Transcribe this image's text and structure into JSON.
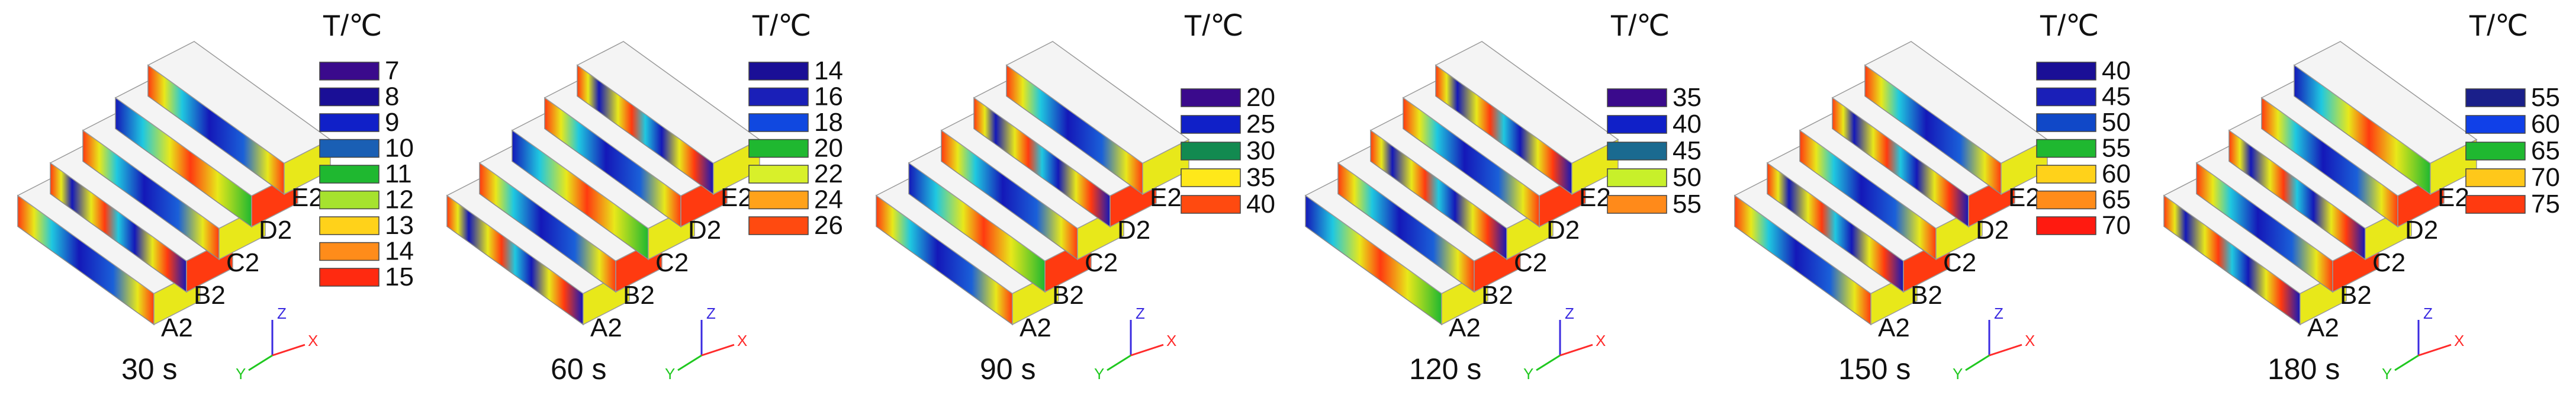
{
  "panels": [
    {
      "time": "30 s",
      "legend_title": "T/℃",
      "legend": [
        {
          "label": "7",
          "color": "#3a0a8c"
        },
        {
          "label": "8",
          "color": "#1a0f96"
        },
        {
          "label": "9",
          "color": "#1020c8"
        },
        {
          "label": "10",
          "color": "#1a5fb4"
        },
        {
          "label": "11",
          "color": "#1fb830"
        },
        {
          "label": "12",
          "color": "#a6e22e"
        },
        {
          "label": "13",
          "color": "#ffd21a"
        },
        {
          "label": "14",
          "color": "#ff8c1a"
        },
        {
          "label": "15",
          "color": "#ff2a10"
        }
      ]
    },
    {
      "time": "60 s",
      "legend_title": "T/℃",
      "legend": [
        {
          "label": "14",
          "color": "#1a0f96"
        },
        {
          "label": "16",
          "color": "#1a1fb8"
        },
        {
          "label": "18",
          "color": "#1048e0"
        },
        {
          "label": "20",
          "color": "#1fb830"
        },
        {
          "label": "22",
          "color": "#d8f02a"
        },
        {
          "label": "24",
          "color": "#ffa21a"
        },
        {
          "label": "26",
          "color": "#ff4a10"
        }
      ]
    },
    {
      "time": "90 s",
      "legend_title": "T/℃",
      "legend": [
        {
          "label": "20",
          "color": "#3a0a8c"
        },
        {
          "label": "25",
          "color": "#1020c8"
        },
        {
          "label": "30",
          "color": "#128a50"
        },
        {
          "label": "35",
          "color": "#ffe81a"
        },
        {
          "label": "40",
          "color": "#ff4a10"
        }
      ]
    },
    {
      "time": "120 s",
      "legend_title": "T/℃",
      "legend": [
        {
          "label": "35",
          "color": "#3a0a8c"
        },
        {
          "label": "40",
          "color": "#1020c8"
        },
        {
          "label": "45",
          "color": "#1a6a90"
        },
        {
          "label": "50",
          "color": "#c8f02a"
        },
        {
          "label": "55",
          "color": "#ff8a1a"
        }
      ]
    },
    {
      "time": "150 s",
      "legend_title": "T/℃",
      "legend": [
        {
          "label": "40",
          "color": "#1a0f96"
        },
        {
          "label": "45",
          "color": "#1a1fb8"
        },
        {
          "label": "50",
          "color": "#1048c8"
        },
        {
          "label": "55",
          "color": "#1fb830"
        },
        {
          "label": "60",
          "color": "#ffd21a"
        },
        {
          "label": "65",
          "color": "#ff8c1a"
        },
        {
          "label": "70",
          "color": "#ff1a10"
        }
      ]
    },
    {
      "time": "180 s",
      "legend_title": "T/℃",
      "legend": [
        {
          "label": "55",
          "color": "#1a1f8a"
        },
        {
          "label": "60",
          "color": "#1040e8"
        },
        {
          "label": "65",
          "color": "#1fb830"
        },
        {
          "label": "70",
          "color": "#ffc81a"
        },
        {
          "label": "75",
          "color": "#ff3a10"
        }
      ]
    }
  ],
  "row_labels": [
    "A2",
    "B2",
    "C2",
    "D2",
    "E2"
  ],
  "axes": {
    "x": "X",
    "y": "Y",
    "z": "Z",
    "x_color": "#ff2a2a",
    "y_color": "#1fc81f",
    "z_color": "#3a2ae0"
  },
  "block_colors": {
    "cold": "#1418b8",
    "mid": "#1fc8e0",
    "warm": "#e8e81a",
    "hot": "#ff3a10",
    "frame": "#9a9a9a"
  }
}
